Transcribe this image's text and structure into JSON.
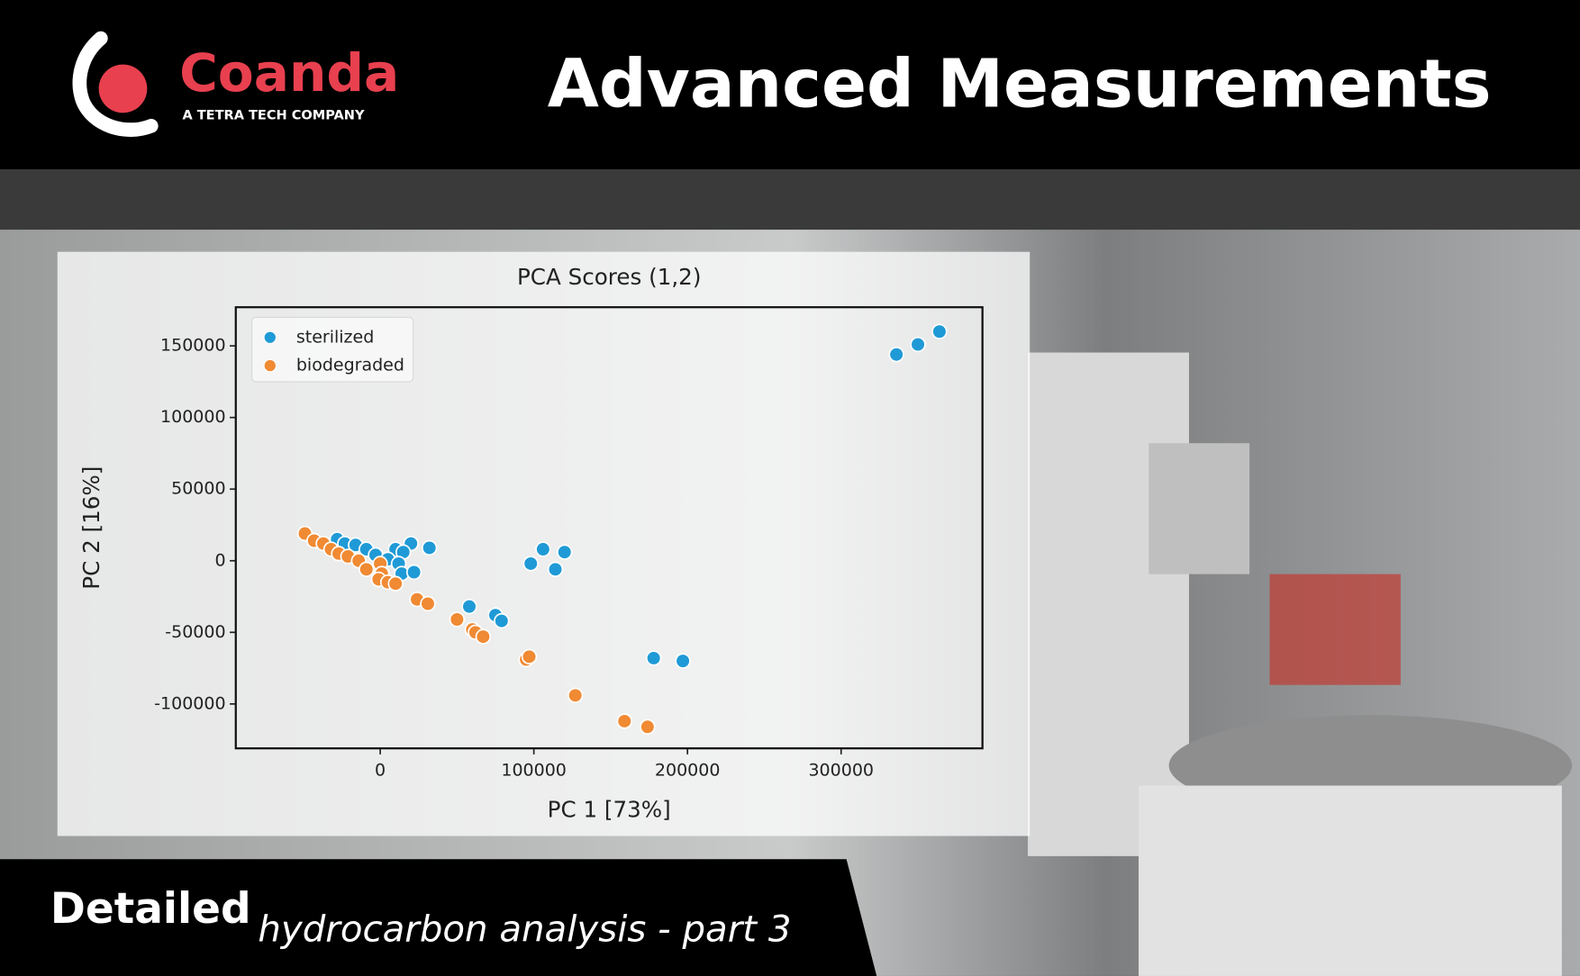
{
  "header": {
    "brand": "Coanda",
    "tagline": "A TETRA TECH COMPANY",
    "title": "Advanced Measurements"
  },
  "footer": {
    "lead": "Detailed",
    "text": "hydrocarbon analysis - part 3"
  },
  "chart_data": {
    "type": "scatter",
    "title": "PCA Scores (1,2)",
    "x_label": "PC 1 [73%]",
    "y_label": "PC 2 [16%]",
    "xlim": [
      -94000,
      392000
    ],
    "ylim": [
      -131000,
      177000
    ],
    "xticks": [
      0,
      100000,
      200000,
      300000
    ],
    "yticks": [
      -100000,
      -50000,
      0,
      50000,
      100000,
      150000
    ],
    "legend": "upper left",
    "grid": false,
    "series": [
      {
        "name": "sterilized",
        "color": "#1f9ad6",
        "x": [
          364000,
          350000,
          336000,
          32000,
          20000,
          10000,
          15000,
          -28000,
          -23000,
          -16000,
          -9000,
          -3000,
          5000,
          12000,
          14000,
          22000,
          106000,
          120000,
          98000,
          114000,
          58000,
          75000,
          79000,
          178000,
          197000
        ],
        "values": [
          160000,
          151000,
          144000,
          9000,
          12000,
          8000,
          6000,
          15000,
          12000,
          11000,
          8000,
          4000,
          1000,
          -2000,
          -9000,
          -8000,
          8000,
          6000,
          -2000,
          -6000,
          -32000,
          -38000,
          -42000,
          -68000,
          -70000
        ]
      },
      {
        "name": "biodegraded",
        "color": "#f08a33",
        "x": [
          -49000,
          -43000,
          -37000,
          -32000,
          -27000,
          -21000,
          -14000,
          -9000,
          0,
          1000,
          -1000,
          5000,
          10000,
          24000,
          31000,
          50000,
          60000,
          62000,
          67000,
          95000,
          97000,
          127000,
          159000,
          174000
        ],
        "values": [
          19000,
          14000,
          12000,
          8000,
          5000,
          3000,
          0,
          -6000,
          -2000,
          -9000,
          -13000,
          -15000,
          -16000,
          -27000,
          -30000,
          -41000,
          -48000,
          -50000,
          -53000,
          -69000,
          -67000,
          -94000,
          -112000,
          -116000
        ]
      }
    ]
  }
}
